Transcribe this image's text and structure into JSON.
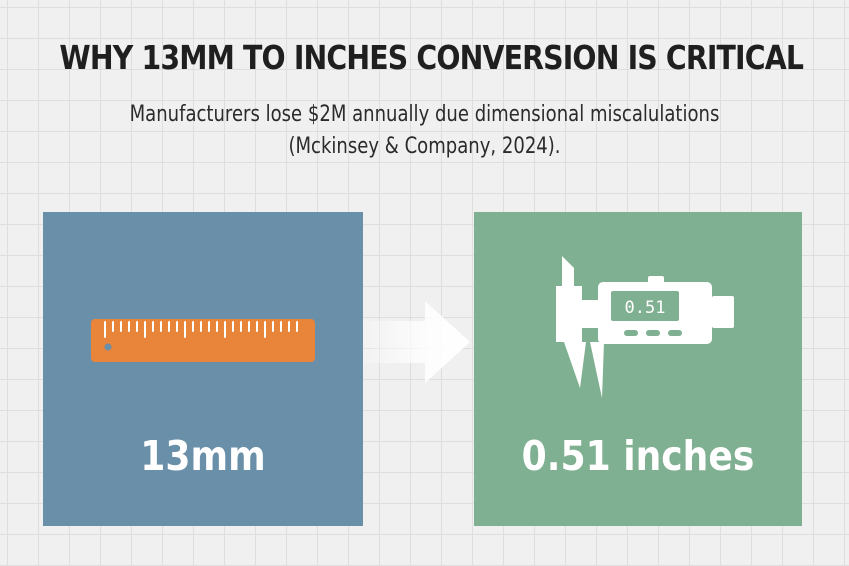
{
  "header": {
    "title": "WHY 13MM TO INCHES CONVERSION IS CRITICAL",
    "subtitle_line1": "Manufacturers lose $2M annually due dimensional miscalulations",
    "subtitle_line2": "(Mckinsey & Company, 2024)."
  },
  "left_panel": {
    "value": "13mm",
    "icon": "ruler-icon",
    "color": "#6a8fa8",
    "icon_color": "#e8853a"
  },
  "arrow": {
    "icon": "arrow-right-icon",
    "color": "#ffffff"
  },
  "right_panel": {
    "value": "0.51 inches",
    "icon": "digital-caliper-icon",
    "display_reading": "0.51",
    "color": "#80b092"
  }
}
